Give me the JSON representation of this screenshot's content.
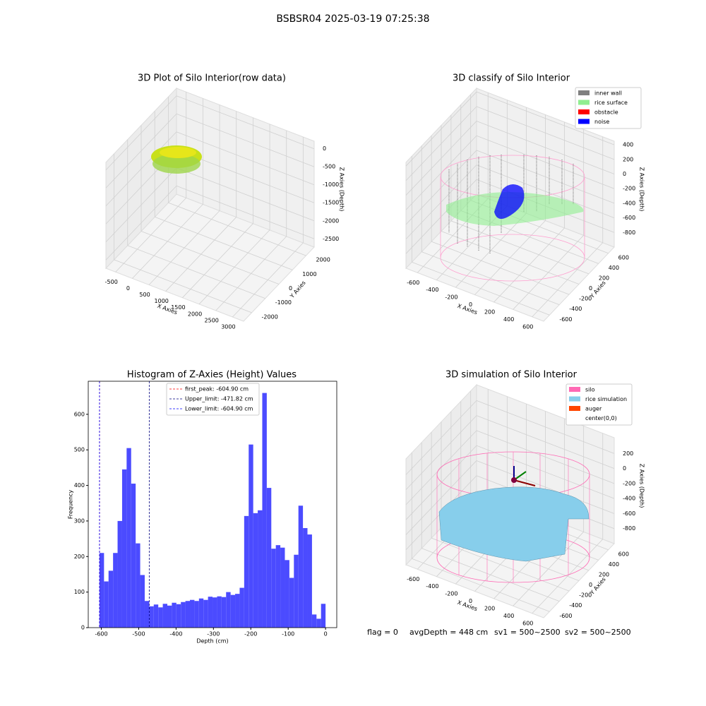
{
  "title": "BSBSR04 2025-03-19 07:25:38",
  "chart_data": [
    {
      "type": "scatter3d",
      "title": "3D Plot of Silo Interior(row data)",
      "xlabel": "X Axies",
      "ylabel": "Y Axies",
      "zlabel": "Z Axies (Depth)",
      "xlim": [
        -790,
        3330
      ],
      "xticks": [
        -500,
        0,
        500,
        1000,
        1500,
        2000,
        2500,
        3000
      ],
      "ylim": [
        -2600,
        2600
      ],
      "yticks": [
        -2000,
        -1000,
        0,
        1000,
        2000
      ],
      "zlim": [
        -2730,
        210
      ],
      "zticks": [
        -2500,
        -2000,
        -1500,
        -1000,
        -500,
        0
      ]
    },
    {
      "type": "scatter3d",
      "title": "3D classify of Silo Interior",
      "xlabel": "X Axies",
      "ylabel": "Y Axies",
      "zlabel": "Z Axies (Depth)",
      "xlim": [
        -720,
        720
      ],
      "xticks": [
        -600,
        -400,
        -200,
        0,
        200,
        400,
        600
      ],
      "ylim": [
        -720,
        720
      ],
      "yticks": [
        -600,
        -400,
        -200,
        0,
        200,
        400,
        600
      ],
      "zlim": [
        -1000,
        450
      ],
      "zticks": [
        -800,
        -600,
        -400,
        -200,
        0,
        200,
        400
      ],
      "legend": [
        {
          "name": "inner wall",
          "color": "#808080"
        },
        {
          "name": "rice surface",
          "color": "#90ee90"
        },
        {
          "name": "obstacle",
          "color": "#ff0000"
        },
        {
          "name": "noise",
          "color": "#0000ff"
        }
      ]
    },
    {
      "type": "histogram",
      "title": "Histogram of Z-Axies (Height) Values",
      "xlabel": "Depth (cm)",
      "ylabel": "Frequency",
      "color": "#4b4bff",
      "bins": [
        -604.9,
        -592.8,
        -580.7,
        -568.61,
        -556.51,
        -544.41,
        -532.31,
        -520.21,
        -508.12,
        -496.02,
        -483.92,
        -471.82,
        -459.72,
        -447.63,
        -435.53,
        -423.43,
        -411.33,
        -399.23,
        -387.14,
        -375.04,
        -362.94,
        -350.84,
        -338.74,
        -326.65,
        -314.55,
        -302.45,
        -290.35,
        -278.26,
        -266.16,
        -254.06,
        -241.96,
        -229.86,
        -217.77,
        -205.67,
        -193.57,
        -181.47,
        -169.38,
        -157.28,
        -145.18,
        -133.08,
        -120.98,
        -108.89,
        -96.79,
        -84.69,
        -72.59,
        -60.49,
        -48.39,
        -36.29,
        -24.2,
        -12.1,
        0
      ],
      "values": [
        210,
        130,
        160,
        210,
        300,
        445,
        505,
        405,
        237,
        148,
        75,
        60,
        65,
        57,
        67,
        62,
        70,
        66,
        72,
        75,
        78,
        75,
        82,
        78,
        87,
        85,
        88,
        86,
        100,
        92,
        95,
        112,
        314,
        515,
        322,
        330,
        660,
        393,
        222,
        232,
        225,
        190,
        140,
        205,
        343,
        280,
        262,
        37,
        25,
        67
      ],
      "xlim": [
        -635,
        30
      ],
      "xticks": [
        -600,
        -500,
        -400,
        -300,
        -200,
        -100,
        0
      ],
      "ylim": [
        0,
        693
      ],
      "yticks": [
        0,
        100,
        200,
        300,
        400,
        500,
        600
      ],
      "vlines": [
        {
          "label": "first_peak: -604.90 cm",
          "value": -604.9,
          "color": "#ff0000"
        },
        {
          "label": "Upper_limit: -471.82 cm",
          "value": -471.82,
          "color": "#000080"
        },
        {
          "label": "Lower_limit: -604.90 cm",
          "value": -604.9,
          "color": "#0000ff"
        }
      ]
    },
    {
      "type": "surface3d",
      "title": "3D simulation of Silo Interior",
      "xlabel": "X Axies",
      "ylabel": "Y Axies",
      "zlabel": "Z Axies (Depth)",
      "xlim": [
        -720,
        720
      ],
      "xticks": [
        -600,
        -400,
        -200,
        0,
        200,
        400,
        600
      ],
      "ylim": [
        -720,
        720
      ],
      "yticks": [
        -600,
        -400,
        -200,
        0,
        200,
        400,
        600
      ],
      "zlim": [
        -1000,
        410
      ],
      "zticks": [
        -800,
        -600,
        -400,
        -200,
        0,
        200
      ],
      "legend": [
        {
          "name": "silo",
          "color": "#ff69b4"
        },
        {
          "name": "rice simulation",
          "color": "#87ceeb"
        },
        {
          "name": "auger",
          "color": "#ff4500"
        },
        {
          "name": "center(0,0)",
          "color": "#ffffff"
        }
      ]
    }
  ],
  "status": {
    "flag": "flag = 0",
    "avg_depth": "avgDepth = 448 cm",
    "sv1": "sv1 = 500~2500",
    "sv2": "sv2 = 500~2500"
  }
}
